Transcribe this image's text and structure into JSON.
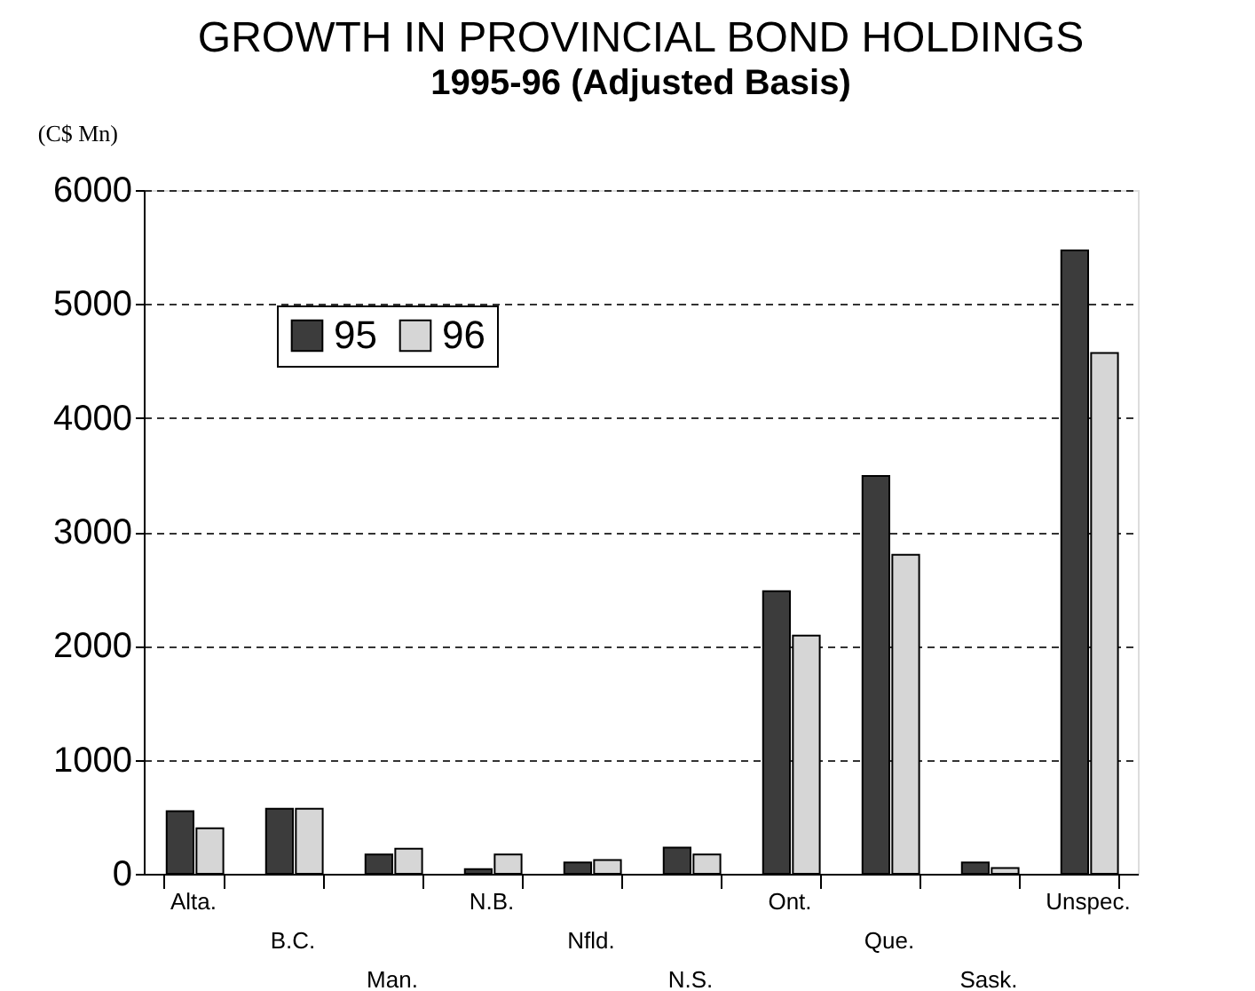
{
  "chart_data": {
    "type": "bar",
    "title": "GROWTH IN PROVINCIAL BOND HOLDINGS",
    "subtitle": "1995-96 (Adjusted Basis)",
    "ylabel": "(C$ Mn)",
    "categories": [
      "Alta.",
      "B.C.",
      "Man.",
      "N.B.",
      "Nfld.",
      "N.S.",
      "Ont.",
      "Que.",
      "Sask.",
      "Unspec."
    ],
    "series": [
      {
        "name": "95",
        "color": "#3c3c3c",
        "values": [
          550,
          570,
          170,
          40,
          100,
          230,
          2480,
          3490,
          100,
          5470
        ]
      },
      {
        "name": "96",
        "color": "#d6d6d6",
        "values": [
          400,
          570,
          220,
          170,
          120,
          170,
          2090,
          2800,
          50,
          4570
        ]
      }
    ],
    "ylim": [
      0,
      6000
    ],
    "yticks": [
      0,
      1000,
      2000,
      3000,
      4000,
      5000,
      6000
    ],
    "grid": "y",
    "legend": "top left"
  }
}
